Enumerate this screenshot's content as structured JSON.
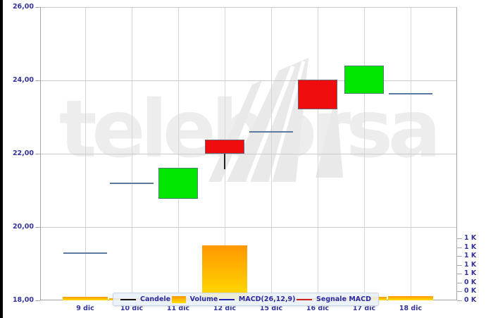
{
  "watermark_text": "teleborsa",
  "axes": {
    "y_left_labels": [
      "26,00",
      "24,00",
      "22,00",
      "20,00",
      "18,00"
    ],
    "y_right_labels": [
      "1 K",
      "1 K",
      "1 K",
      "1 K",
      "1 K",
      "0 K",
      "0 K",
      "0 K"
    ],
    "x_date_labels": [
      "9 dic",
      "10 dic",
      "11 dic",
      "12 dic",
      "15 dic",
      "16 dic",
      "17 dic",
      "18 dic"
    ]
  },
  "legend": {
    "items": [
      {
        "label": "Candele",
        "swatch": "line",
        "color": "#111111"
      },
      {
        "label": "Volume",
        "swatch": "box",
        "color": "#ffaa00"
      },
      {
        "label": "MACD(26,12,9)",
        "swatch": "line",
        "color": "#2323b4"
      },
      {
        "label": "Segnale MACD",
        "swatch": "line",
        "color": "#cc2222"
      }
    ]
  },
  "colors": {
    "candle_up": "#00e600",
    "candle_down": "#ee0d0d",
    "candle_flat": "#5b7aa0",
    "candle_wick": "#222222",
    "volume_top": "#ff9700",
    "volume_bottom": "#ffdf00",
    "grid": "#d7d7d7",
    "axis_frame": "#a6a6a6",
    "axis_text": "#333399",
    "legend_bg": "#e9f0f8",
    "legend_text": "#2a2aa6",
    "watermark": "#ededed"
  },
  "chart_data": {
    "type": "bar",
    "subtype": "candlestick-with-volume",
    "title": "",
    "xlabel": "",
    "ylabel": "",
    "x": [
      "9 dic",
      "10 dic",
      "11 dic",
      "12 dic",
      "15 dic",
      "16 dic",
      "17 dic",
      "18 dic"
    ],
    "ylim": [
      18,
      26
    ],
    "price_gridlines": [
      26,
      24,
      22,
      20,
      18
    ],
    "grid": true,
    "legend_position": "bottom-center",
    "candles": [
      {
        "x": "9 dic",
        "type": "flat",
        "price": 19.29
      },
      {
        "x": "10 dic",
        "type": "flat",
        "price": 21.19
      },
      {
        "x": "11 dic",
        "type": "up",
        "open": 20.77,
        "close": 21.62
      },
      {
        "x": "12 dic",
        "type": "down",
        "open": 22.38,
        "close": 22.0,
        "low": 21.58
      },
      {
        "x": "15 dic",
        "type": "flat",
        "price": 22.6
      },
      {
        "x": "16 dic",
        "type": "down",
        "open": 24.02,
        "close": 23.21
      },
      {
        "x": "17 dic",
        "type": "up",
        "open": 23.63,
        "close": 24.4
      },
      {
        "x": "18 dic",
        "type": "flat",
        "price": 23.63
      }
    ],
    "volumes_k": [
      0.05,
      0.03,
      0.03,
      0.78,
      0.03,
      0.03,
      0.05,
      0.06
    ],
    "volume_axis": {
      "labels_top_to_bottom": [
        "1 K",
        "1 K",
        "1 K",
        "1 K",
        "1 K",
        "0 K",
        "0 K",
        "0 K"
      ],
      "range_k": [
        0,
        1
      ]
    }
  }
}
